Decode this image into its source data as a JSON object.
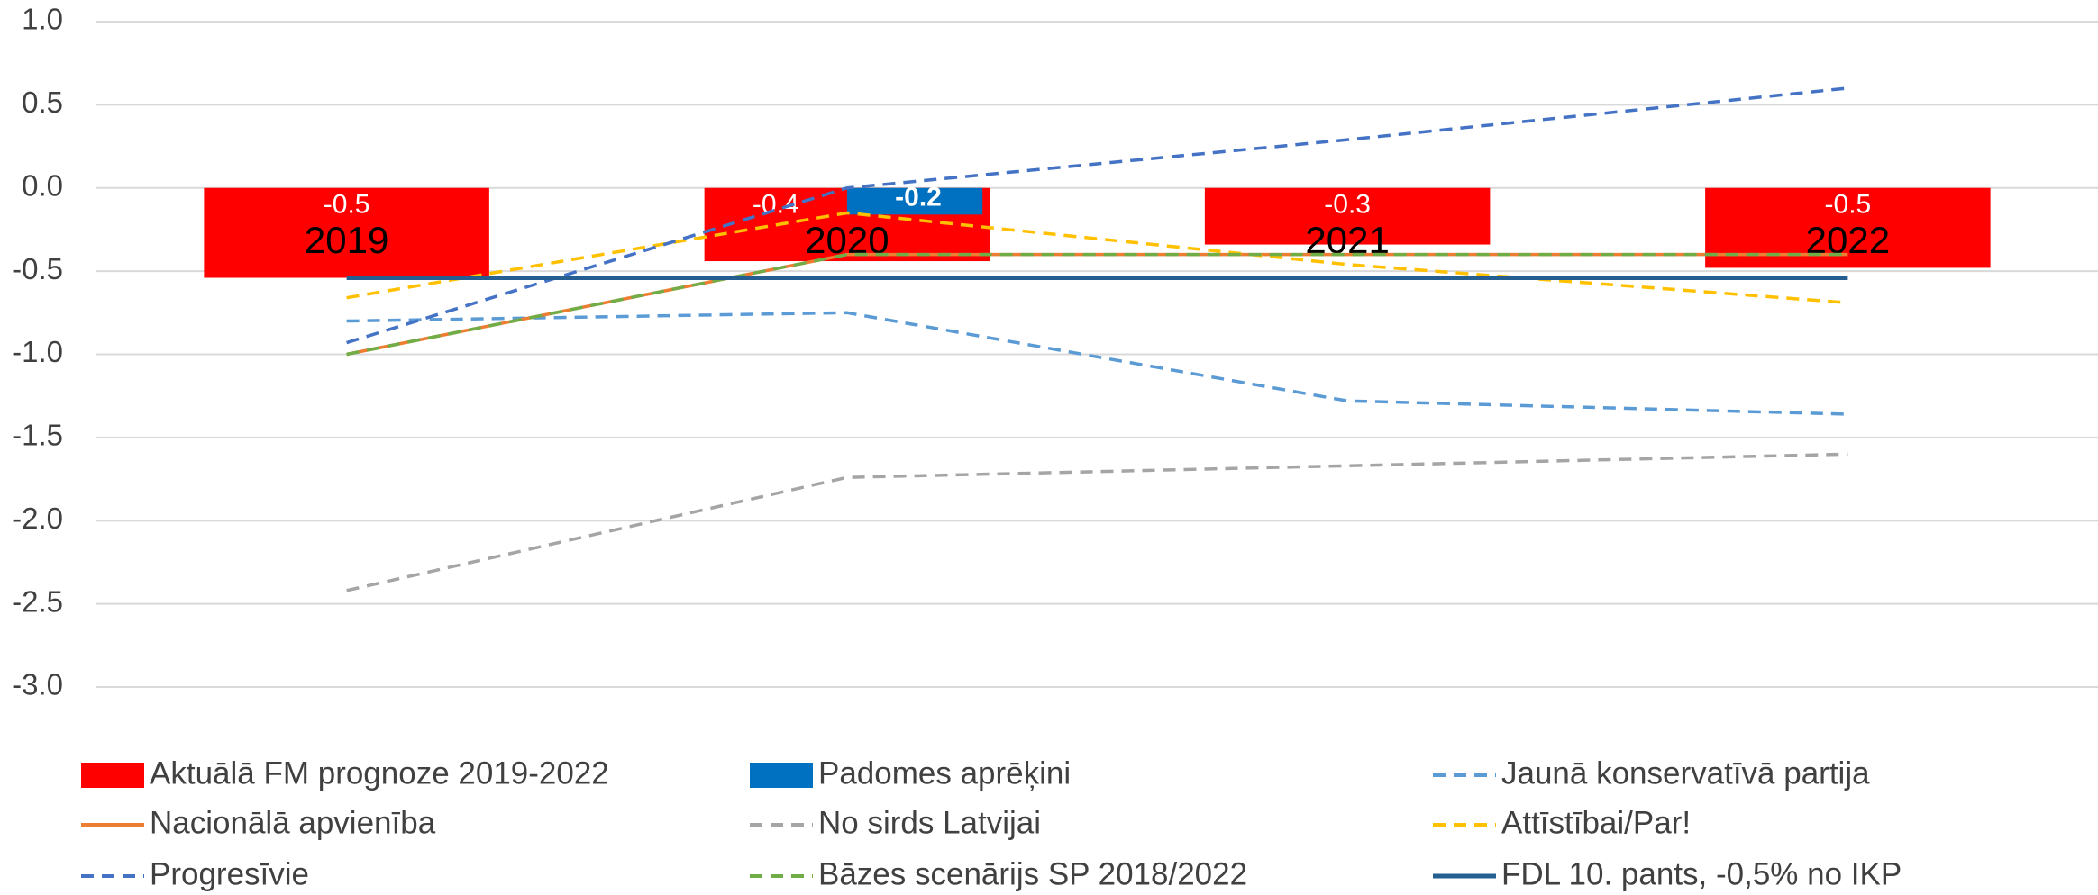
{
  "chart_data": {
    "type": "bar-line",
    "categories": [
      "2019",
      "2020",
      "2021",
      "2022"
    ],
    "ylim": [
      -3,
      1
    ],
    "yticks": [
      {
        "value": 1,
        "label": "1.0"
      },
      {
        "value": 0.5,
        "label": "0.5"
      },
      {
        "value": 0,
        "label": "0.0"
      },
      {
        "value": -0.5,
        "label": "-0.5"
      },
      {
        "value": -1,
        "label": "-1.0"
      },
      {
        "value": -1.5,
        "label": "-1.5"
      },
      {
        "value": -2,
        "label": "-2.0"
      },
      {
        "value": -2.5,
        "label": "-2.5"
      },
      {
        "value": -3,
        "label": "-3.0"
      }
    ],
    "grid": true,
    "legend": "bottom",
    "series": [
      {
        "name": "Aktuālā FM prognoze 2019-2022",
        "type": "bar",
        "color": "#ff0000",
        "values": [
          -0.54,
          -0.44,
          -0.34,
          -0.48
        ],
        "value_labels": [
          "-0.5",
          "-0.4",
          "-0.3",
          "-0.5"
        ]
      },
      {
        "name": "Padomes aprēķini",
        "type": "bar",
        "color": "#0070c0",
        "values": [
          null,
          -0.16,
          null,
          null
        ],
        "value_labels": [
          null,
          "-0.2",
          null,
          null
        ]
      },
      {
        "name": "Jaunā konservatīvā partija",
        "type": "line",
        "dash": true,
        "color": "#5b9bd5",
        "values": [
          -0.8,
          -0.75,
          -1.28,
          -1.36
        ]
      },
      {
        "name": "Nacionālā apvienība",
        "type": "line",
        "dash": false,
        "color": "#ed7d31",
        "values": [
          -1.0,
          -0.4,
          -0.4,
          -0.4
        ]
      },
      {
        "name": "No sirds Latvijai",
        "type": "line",
        "dash": true,
        "color": "#a5a5a5",
        "values": [
          -2.42,
          -1.74,
          -1.67,
          -1.6
        ]
      },
      {
        "name": "Attīstībai/Par!",
        "type": "line",
        "dash": true,
        "color": "#ffc000",
        "values": [
          -0.66,
          -0.15,
          -0.46,
          -0.69
        ]
      },
      {
        "name": "Progresīvie",
        "type": "line",
        "dash": true,
        "color": "#4472c4",
        "values": [
          -0.93,
          0.0,
          0.29,
          0.6
        ]
      },
      {
        "name": "Bāzes scenārijs SP 2018/2022",
        "type": "line",
        "dash": true,
        "color": "#70ad47",
        "values": [
          -1.0,
          -0.4,
          -0.4,
          -0.4
        ]
      },
      {
        "name": "FDL 10. pants, -0,5% no IKP",
        "type": "line",
        "dash": false,
        "width": 5,
        "color": "#255e91",
        "values": [
          -0.54,
          -0.54,
          -0.54,
          -0.54
        ]
      }
    ]
  }
}
